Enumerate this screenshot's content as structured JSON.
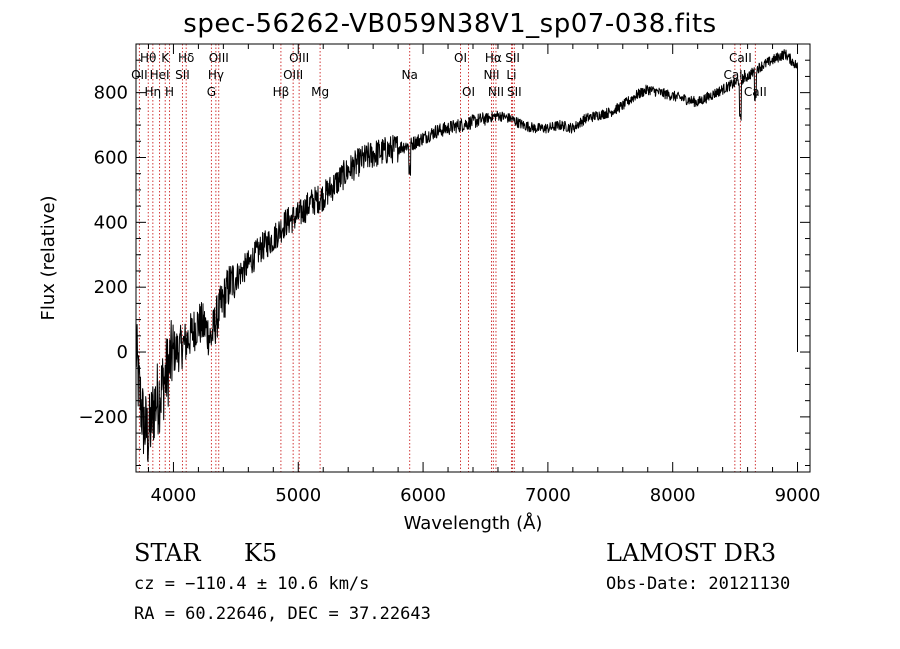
{
  "title": "spec-56262-VB059N38V1_sp07-038.fits",
  "object_class": "STAR",
  "subclass": "K5",
  "survey": "LAMOST DR3",
  "cz_text": "cz = −110.4 ± 10.6 km/s",
  "radec_text": "RA =  60.22646, DEC =  37.22643",
  "obs_date_text": "Obs-Date: 20121130",
  "colors": {
    "axis": "#000000",
    "spectrum": "#000000",
    "lines": "#cc2222",
    "background": "#ffffff"
  },
  "chart_data": {
    "type": "line",
    "title": "spec-56262-VB059N38V1_sp07-038.fits",
    "xlabel": "Wavelength (Å)",
    "ylabel": "Flux (relative)",
    "xlim": [
      3700,
      9100
    ],
    "ylim": [
      -370,
      950
    ],
    "x_ticks": [
      4000,
      5000,
      6000,
      7000,
      8000,
      9000
    ],
    "x_tick_labels": [
      "4000",
      "5000",
      "6000",
      "7000",
      "8000",
      "9000"
    ],
    "y_ticks": [
      -200,
      0,
      200,
      400,
      600,
      800
    ],
    "y_tick_labels": [
      "−200",
      "0",
      "200",
      "400",
      "600",
      "800"
    ],
    "spectrum_anchor_points": [
      [
        3700,
        20
      ],
      [
        3720,
        -100
      ],
      [
        3760,
        -220
      ],
      [
        3800,
        -260
      ],
      [
        3850,
        -160
      ],
      [
        3900,
        -120
      ],
      [
        3950,
        -60
      ],
      [
        4000,
        0
      ],
      [
        4050,
        10
      ],
      [
        4100,
        30
      ],
      [
        4150,
        60
      ],
      [
        4200,
        90
      ],
      [
        4250,
        80
      ],
      [
        4300,
        40
      ],
      [
        4350,
        110
      ],
      [
        4400,
        160
      ],
      [
        4450,
        210
      ],
      [
        4500,
        230
      ],
      [
        4600,
        270
      ],
      [
        4700,
        320
      ],
      [
        4800,
        350
      ],
      [
        4900,
        400
      ],
      [
        5000,
        420
      ],
      [
        5100,
        460
      ],
      [
        5200,
        480
      ],
      [
        5300,
        520
      ],
      [
        5400,
        560
      ],
      [
        5500,
        590
      ],
      [
        5600,
        610
      ],
      [
        5700,
        620
      ],
      [
        5800,
        630
      ],
      [
        5900,
        640
      ],
      [
        6000,
        660
      ],
      [
        6100,
        680
      ],
      [
        6200,
        690
      ],
      [
        6300,
        700
      ],
      [
        6400,
        710
      ],
      [
        6500,
        720
      ],
      [
        6600,
        730
      ],
      [
        6700,
        720
      ],
      [
        6800,
        700
      ],
      [
        6900,
        690
      ],
      [
        7000,
        690
      ],
      [
        7100,
        700
      ],
      [
        7200,
        690
      ],
      [
        7300,
        720
      ],
      [
        7400,
        730
      ],
      [
        7500,
        740
      ],
      [
        7600,
        760
      ],
      [
        7700,
        790
      ],
      [
        7800,
        810
      ],
      [
        7900,
        800
      ],
      [
        8000,
        790
      ],
      [
        8100,
        780
      ],
      [
        8200,
        770
      ],
      [
        8300,
        790
      ],
      [
        8400,
        810
      ],
      [
        8500,
        830
      ],
      [
        8600,
        850
      ],
      [
        8700,
        880
      ],
      [
        8800,
        900
      ],
      [
        8900,
        920
      ],
      [
        8950,
        900
      ],
      [
        9000,
        880
      ]
    ],
    "spectral_lines": [
      {
        "name": "Hθ",
        "wavelength": 3798,
        "row": 1
      },
      {
        "name": "OII",
        "wavelength": 3727,
        "row": 2
      },
      {
        "name": "Hη",
        "wavelength": 3835,
        "row": 3
      },
      {
        "name": "K",
        "wavelength": 3934,
        "row": 1
      },
      {
        "name": "HeI",
        "wavelength": 3889,
        "row": 2
      },
      {
        "name": "H",
        "wavelength": 3969,
        "row": 3
      },
      {
        "name": "Hδ",
        "wavelength": 4102,
        "row": 1
      },
      {
        "name": "SII",
        "wavelength": 4072,
        "row": 2
      },
      {
        "name": "OIII",
        "wavelength": 4363,
        "row": 1
      },
      {
        "name": "Hγ",
        "wavelength": 4340,
        "row": 2
      },
      {
        "name": "G",
        "wavelength": 4304,
        "row": 3
      },
      {
        "name": "Hβ",
        "wavelength": 4861,
        "row": 3
      },
      {
        "name": "OIII",
        "wavelength": 5007,
        "row": 1
      },
      {
        "name": "OIII",
        "wavelength": 4959,
        "row": 2
      },
      {
        "name": "Mg",
        "wavelength": 5175,
        "row": 3
      },
      {
        "name": "Na",
        "wavelength": 5893,
        "row": 2
      },
      {
        "name": "OI",
        "wavelength": 6300,
        "row": 1
      },
      {
        "name": "OI",
        "wavelength": 6364,
        "row": 3
      },
      {
        "name": "Hα",
        "wavelength": 6563,
        "row": 1
      },
      {
        "name": "SII",
        "wavelength": 6717,
        "row": 1
      },
      {
        "name": "NII",
        "wavelength": 6548,
        "row": 2
      },
      {
        "name": "Li",
        "wavelength": 6708,
        "row": 2
      },
      {
        "name": "NII",
        "wavelength": 6584,
        "row": 3
      },
      {
        "name": "SII",
        "wavelength": 6731,
        "row": 3
      },
      {
        "name": "CaII",
        "wavelength": 8542,
        "row": 1
      },
      {
        "name": "CaII",
        "wavelength": 8498,
        "row": 2
      },
      {
        "name": "CaII",
        "wavelength": 8662,
        "row": 3
      }
    ]
  }
}
